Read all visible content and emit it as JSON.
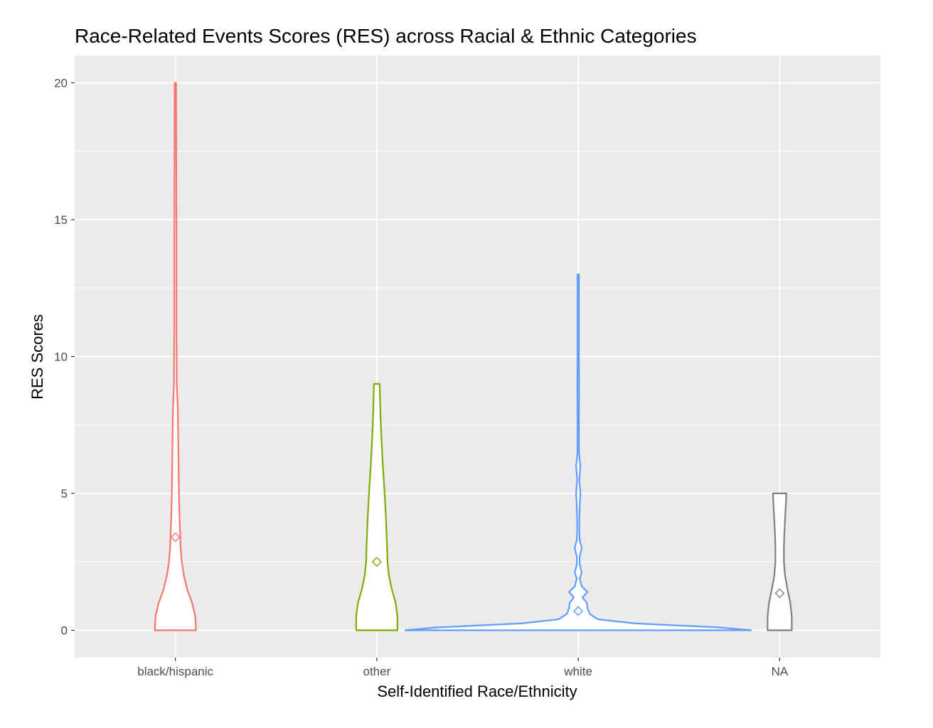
{
  "chart_data": {
    "type": "violin",
    "title": "Race-Related Events Scores (RES) across Racial & Ethnic Categories",
    "xlabel": "Self-Identified Race/Ethnicity",
    "ylabel": "RES Scores",
    "ylim": [
      -1,
      21
    ],
    "yticks": [
      "0",
      "5",
      "10",
      "15",
      "20"
    ],
    "grid": true,
    "legend": "none",
    "categories": [
      "black/hispanic",
      "other",
      "white",
      "NA"
    ],
    "series": [
      {
        "category": "black/hispanic",
        "color": "#F8766D",
        "min": 0,
        "max": 20,
        "mean": 3.4,
        "density": [
          [
            0,
            0.58
          ],
          [
            0.5,
            0.56
          ],
          [
            1,
            0.47
          ],
          [
            1.5,
            0.33
          ],
          [
            2,
            0.24
          ],
          [
            2.5,
            0.18
          ],
          [
            3,
            0.15
          ],
          [
            4,
            0.12
          ],
          [
            5,
            0.1
          ],
          [
            6,
            0.09
          ],
          [
            7,
            0.08
          ],
          [
            8,
            0.07
          ],
          [
            9,
            0.04
          ],
          [
            11,
            0.03
          ],
          [
            14,
            0.03
          ],
          [
            20,
            0.02
          ]
        ]
      },
      {
        "category": "other",
        "color": "#7CAE00",
        "min": 0,
        "max": 9,
        "mean": 2.5,
        "density": [
          [
            0,
            0.58
          ],
          [
            0.5,
            0.58
          ],
          [
            1,
            0.53
          ],
          [
            1.5,
            0.42
          ],
          [
            2,
            0.34
          ],
          [
            2.5,
            0.3
          ],
          [
            3,
            0.29
          ],
          [
            4,
            0.26
          ],
          [
            5,
            0.22
          ],
          [
            6,
            0.17
          ],
          [
            7,
            0.13
          ],
          [
            8,
            0.1
          ],
          [
            9,
            0.08
          ]
        ]
      },
      {
        "category": "white",
        "color": "#619CFF",
        "min": 0,
        "max": 13,
        "mean": 0.7,
        "density": [
          [
            0,
            4.86
          ],
          [
            0.1,
            4.0
          ],
          [
            0.25,
            1.6
          ],
          [
            0.4,
            0.55
          ],
          [
            0.6,
            0.32
          ],
          [
            0.8,
            0.26
          ],
          [
            1.0,
            0.24
          ],
          [
            1.2,
            0.12
          ],
          [
            1.4,
            0.26
          ],
          [
            1.6,
            0.1
          ],
          [
            1.9,
            0.04
          ],
          [
            2.1,
            0.1
          ],
          [
            2.4,
            0.04
          ],
          [
            2.7,
            0.04
          ],
          [
            3.0,
            0.1
          ],
          [
            3.3,
            0.04
          ],
          [
            3.6,
            0.03
          ],
          [
            4.0,
            0.03
          ],
          [
            4.5,
            0.04
          ],
          [
            5.0,
            0.06
          ],
          [
            5.5,
            0.03
          ],
          [
            6.0,
            0.06
          ],
          [
            6.5,
            0.02
          ],
          [
            7.5,
            0.02
          ],
          [
            9.0,
            0.025
          ],
          [
            10.0,
            0.02
          ],
          [
            11.0,
            0.02
          ],
          [
            13.0,
            0.02
          ]
        ]
      },
      {
        "category": "NA",
        "color": "#808080",
        "min": 0,
        "max": 5,
        "mean": 1.35,
        "density": [
          [
            0,
            0.34
          ],
          [
            0.5,
            0.34
          ],
          [
            1,
            0.3
          ],
          [
            1.5,
            0.22
          ],
          [
            2,
            0.15
          ],
          [
            2.5,
            0.12
          ],
          [
            3,
            0.12
          ],
          [
            3.5,
            0.13
          ],
          [
            4,
            0.15
          ],
          [
            4.5,
            0.17
          ],
          [
            5,
            0.19
          ]
        ]
      }
    ]
  }
}
